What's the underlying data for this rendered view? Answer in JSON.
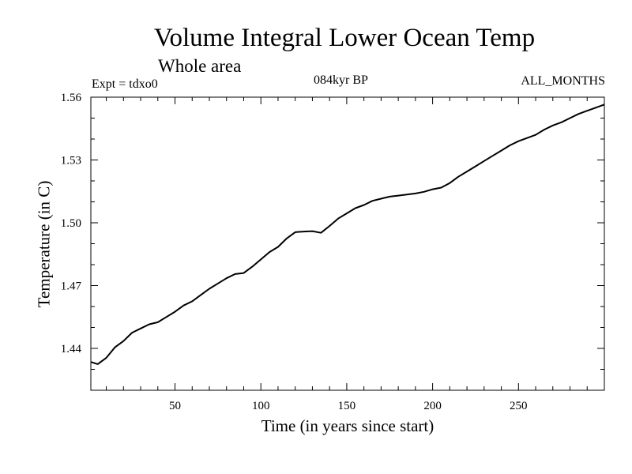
{
  "chart_data": {
    "type": "line",
    "title": "Volume Integral Lower Ocean Temp",
    "subtitle": "Whole area",
    "annotations": {
      "experiment": "Expt = tdxo0",
      "period": "084kyr BP",
      "months": "ALL_MONTHS"
    },
    "xlabel": "Time (in years since start)",
    "ylabel": "Temperature (in C)",
    "xlim": [
      1,
      300
    ],
    "ylim": [
      1.42,
      1.56
    ],
    "xticks": [
      50,
      100,
      150,
      200,
      250
    ],
    "yticks": [
      1.44,
      1.47,
      1.5,
      1.53,
      1.56
    ],
    "ytick_labels": [
      "1.44",
      "1.47",
      "1.50",
      "1.53",
      "1.56"
    ],
    "grid": false,
    "series": [
      {
        "x": [
          1,
          5,
          10,
          15,
          20,
          25,
          30,
          35,
          40,
          45,
          50,
          55,
          60,
          65,
          70,
          75,
          80,
          85,
          90,
          95,
          100,
          105,
          110,
          115,
          120,
          125,
          130,
          135,
          140,
          145,
          150,
          155,
          160,
          165,
          170,
          175,
          180,
          185,
          190,
          195,
          200,
          205,
          210,
          215,
          220,
          225,
          230,
          235,
          240,
          245,
          250,
          255,
          260,
          265,
          270,
          275,
          280,
          285,
          290,
          295,
          300
        ],
        "values": [
          1.4335,
          1.4325,
          1.4355,
          1.4405,
          1.4435,
          1.4475,
          1.4495,
          1.4515,
          1.4525,
          1.455,
          1.4575,
          1.4605,
          1.4625,
          1.4655,
          1.4685,
          1.471,
          1.4735,
          1.4755,
          1.476,
          1.479,
          1.4825,
          1.486,
          1.4885,
          1.4925,
          1.4955,
          1.4958,
          1.496,
          1.4952,
          1.4985,
          1.502,
          1.5045,
          1.507,
          1.5085,
          1.5105,
          1.5115,
          1.5125,
          1.513,
          1.5135,
          1.514,
          1.5148,
          1.516,
          1.5168,
          1.519,
          1.522,
          1.5245,
          1.527,
          1.5295,
          1.532,
          1.5345,
          1.537,
          1.539,
          1.5405,
          1.542,
          1.5445,
          1.5465,
          1.548,
          1.55,
          1.552,
          1.5535,
          1.555,
          1.5565
        ]
      }
    ]
  }
}
